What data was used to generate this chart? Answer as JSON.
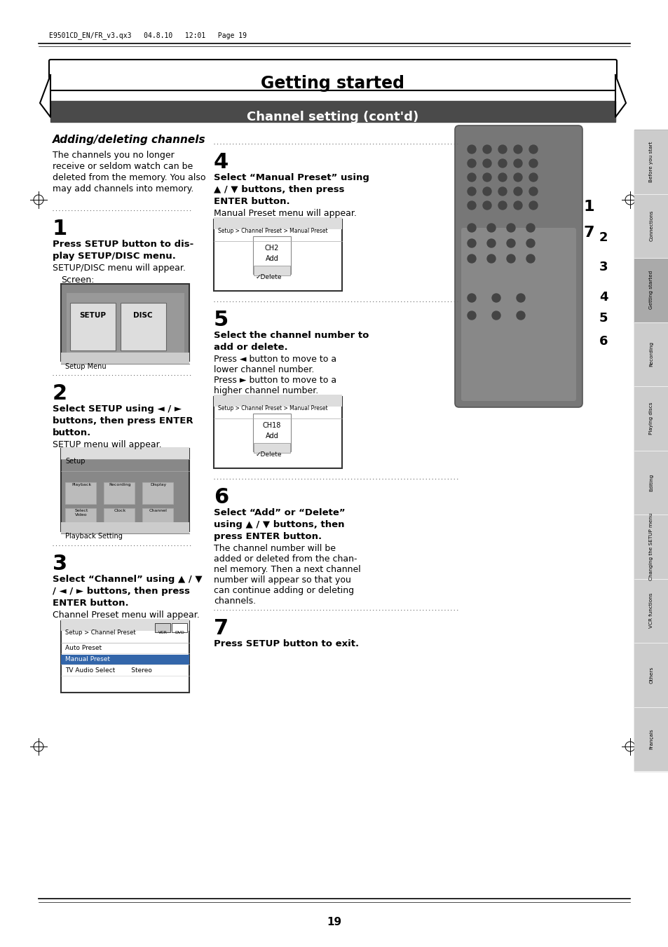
{
  "page_bg": "#ffffff",
  "header_text": "E9501CD_EN/FR_v3.qx3   04.8.10   12:01   Page 19",
  "title_text": "Getting started",
  "subtitle_text": "Channel setting (cont'd)",
  "subtitle_bg": "#4a4a4a",
  "subtitle_fg": "#ffffff",
  "section_title": "Adding/deleting channels",
  "section_intro": "The channels you no longer\nreceive or seldom watch can be\ndeleted from the memory. You also\nmay add channels into memory.",
  "step1_num": "1",
  "step2_num": "2",
  "step3_num": "3",
  "step4_num": "4",
  "step5_num": "5",
  "step6_num": "6",
  "step7_num": "7",
  "sidebar_items": [
    "Before you start",
    "Connections",
    "Getting started",
    "Recording",
    "Playing discs",
    "Editing",
    "Changing the SETUP menu",
    "VCR functions",
    "Others",
    "Français"
  ],
  "page_number": "19",
  "dotted_color": "#666666"
}
